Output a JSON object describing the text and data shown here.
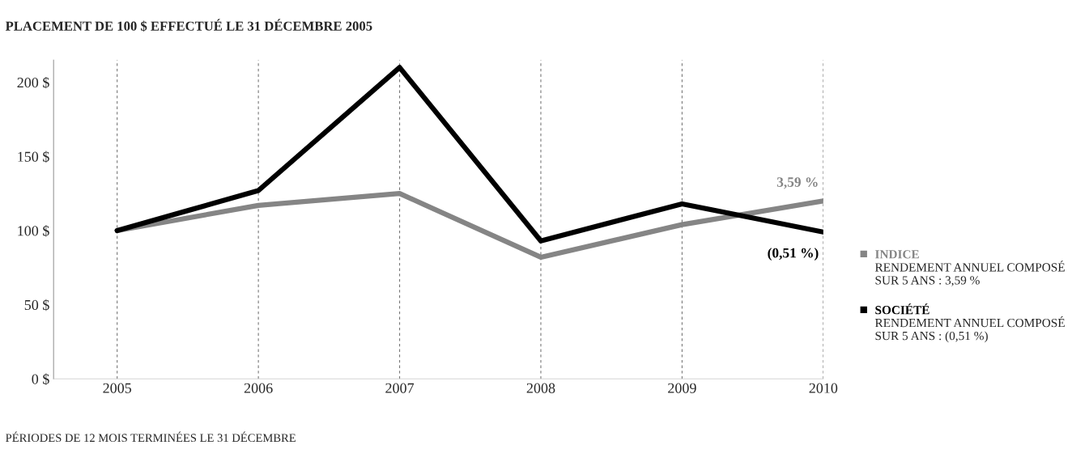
{
  "chart_data": {
    "type": "line",
    "title": "PLACEMENT DE 100 $ EFFECTUÉ LE 31 DÉCEMBRE 2005",
    "xlabel": "PÉRIODES DE 12 MOIS TERMINÉES LE 31 DÉCEMBRE",
    "x": [
      2005,
      2006,
      2007,
      2008,
      2009,
      2010
    ],
    "xlim": [
      2004.55,
      2010
    ],
    "xticks": [
      2005,
      2006,
      2007,
      2008,
      2009,
      2010
    ],
    "ylim": [
      0,
      215
    ],
    "yticks": [
      {
        "value": 0,
        "label": "0 $"
      },
      {
        "value": 50,
        "label": "50 $"
      },
      {
        "value": 100,
        "label": "100 $"
      },
      {
        "value": 150,
        "label": "150 $"
      },
      {
        "value": 200,
        "label": "200 $"
      }
    ],
    "series": [
      {
        "name": "INDICE",
        "color": "#858585",
        "values": [
          100,
          117,
          125,
          82,
          104,
          120
        ]
      },
      {
        "name": "SOCIÉTÉ",
        "color": "#000000",
        "values": [
          100,
          127,
          210,
          93,
          118,
          99
        ]
      }
    ],
    "annotations": [
      {
        "text": "3,59 %",
        "x": 2010,
        "y": 120
      },
      {
        "text": "(0,51 %)",
        "x": 2010,
        "y": 99
      },
      "RENDEMENT ANNUEL COMPOSÉ\nSUR 5 ANS : 3,59 %",
      "RENDEMENT ANNUEL COMPOSÉ\nSUR 5 ANS : (0,51 %)"
    ],
    "grid": "x",
    "legend": "right",
    "marker": "none",
    "line_style": "solid"
  }
}
